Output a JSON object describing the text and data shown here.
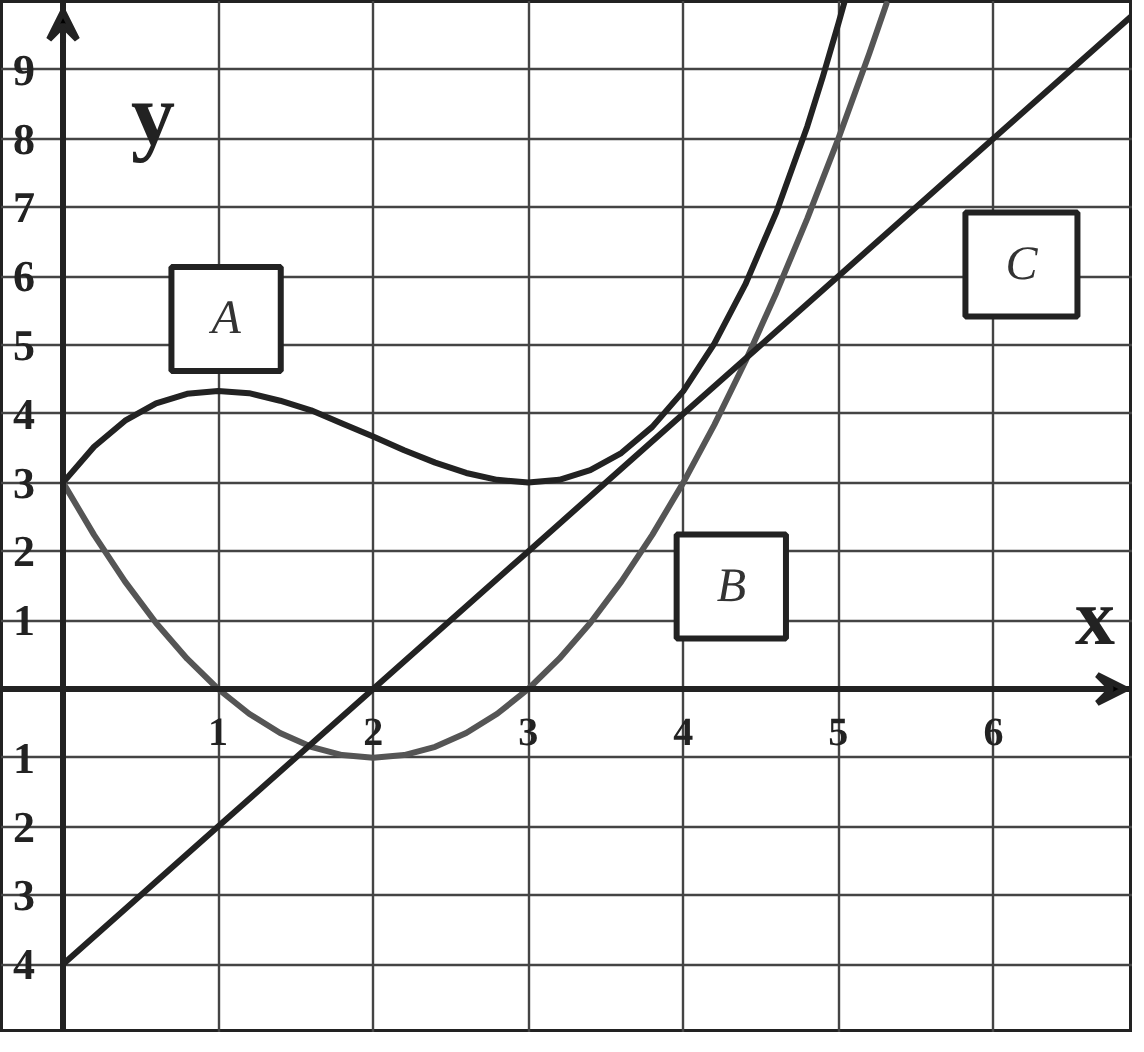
{
  "chart_data": {
    "type": "line",
    "xlabel": "x",
    "ylabel": "y",
    "series": [
      {
        "name": "A",
        "color": "#222222",
        "x": [
          0,
          0.2,
          0.4,
          0.6,
          0.8,
          1.0,
          1.2,
          1.4,
          1.6,
          1.8,
          2.0,
          2.2,
          2.4,
          2.6,
          2.8,
          3.0,
          3.2,
          3.4,
          3.6,
          3.8,
          4.0,
          4.2,
          4.4,
          4.6,
          4.8,
          4.9,
          5.0,
          5.04
        ],
        "values": [
          3.0,
          3.52,
          3.9,
          4.15,
          4.29,
          4.33,
          4.3,
          4.19,
          4.05,
          3.86,
          3.67,
          3.47,
          3.29,
          3.14,
          3.04,
          3.0,
          3.04,
          3.18,
          3.43,
          3.81,
          4.33,
          5.02,
          5.88,
          6.93,
          8.18,
          8.9,
          9.67,
          9.99
        ]
      },
      {
        "name": "B",
        "color": "#555555",
        "x": [
          0,
          0.2,
          0.4,
          0.6,
          0.8,
          1.0,
          1.2,
          1.4,
          1.6,
          1.8,
          2.0,
          2.2,
          2.4,
          2.6,
          2.8,
          3.0,
          3.2,
          3.4,
          3.6,
          3.8,
          4.0,
          4.2,
          4.4,
          4.6,
          4.8,
          5.0,
          5.2,
          5.31
        ],
        "values": [
          3.0,
          2.24,
          1.56,
          0.96,
          0.44,
          0.0,
          -0.36,
          -0.64,
          -0.84,
          -0.96,
          -1.0,
          -0.96,
          -0.84,
          -0.64,
          -0.36,
          0.0,
          0.44,
          0.96,
          1.56,
          2.24,
          3.0,
          3.84,
          4.76,
          5.76,
          6.84,
          8.0,
          9.24,
          9.96
        ]
      },
      {
        "name": "C",
        "color": "#222222",
        "x": [
          0,
          1,
          2,
          3,
          4,
          5,
          6,
          6.9
        ],
        "values": [
          -4,
          -2,
          0,
          2,
          4,
          6,
          8,
          9.8
        ]
      }
    ],
    "xlim": [
      -0.4,
      6.9
    ],
    "ylim": [
      -5,
      10
    ],
    "xticks": [
      1,
      2,
      3,
      4,
      5,
      6
    ],
    "yticks": [
      {
        "value": -4,
        "label": "4"
      },
      {
        "value": -3,
        "label": "3"
      },
      {
        "value": -2,
        "label": "2"
      },
      {
        "value": -1,
        "label": "1"
      },
      1,
      2,
      3,
      4,
      5,
      6,
      7,
      8,
      9
    ],
    "grid": true
  }
}
